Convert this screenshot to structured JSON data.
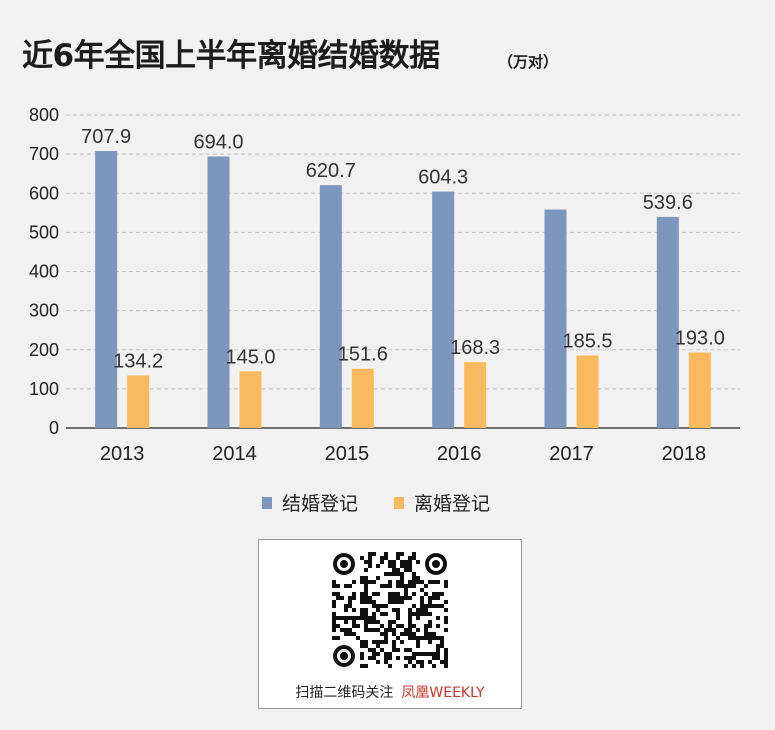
{
  "title": "近6年全国上半年离婚结婚数据",
  "unit": "（万对）",
  "chart_data": {
    "type": "bar",
    "categories": [
      "2013",
      "2014",
      "2015",
      "2016",
      "2017",
      "2018"
    ],
    "series": [
      {
        "name": "结婚登记",
        "color": "#7d96bb",
        "values": [
          707.9,
          694.0,
          620.7,
          604.3,
          558.4,
          539.6
        ],
        "labels": [
          "707.9",
          "694.0",
          "620.7",
          "604.3",
          "",
          "539.6"
        ]
      },
      {
        "name": "离婚登记",
        "color": "#fbb95f",
        "values": [
          134.2,
          145.0,
          151.6,
          168.3,
          185.5,
          193.0
        ],
        "labels": [
          "134.2",
          "145.0",
          "151.6",
          "168.3",
          "185.5",
          "193.0"
        ]
      }
    ],
    "yticks": [
      "0",
      "100",
      "200",
      "300",
      "400",
      "500",
      "600",
      "700",
      "800"
    ],
    "ylim": [
      0,
      800
    ],
    "grid": true,
    "legend_position": "bottom-center"
  },
  "legend": {
    "items": [
      {
        "label": "结婚登记",
        "color": "#7d96bb"
      },
      {
        "label": "离婚登记",
        "color": "#fbb95f"
      }
    ]
  },
  "qr": {
    "caption": "扫描二维码关注",
    "brand": "凤凰WEEKLY"
  },
  "watermark": "凤凰WEEKLY"
}
